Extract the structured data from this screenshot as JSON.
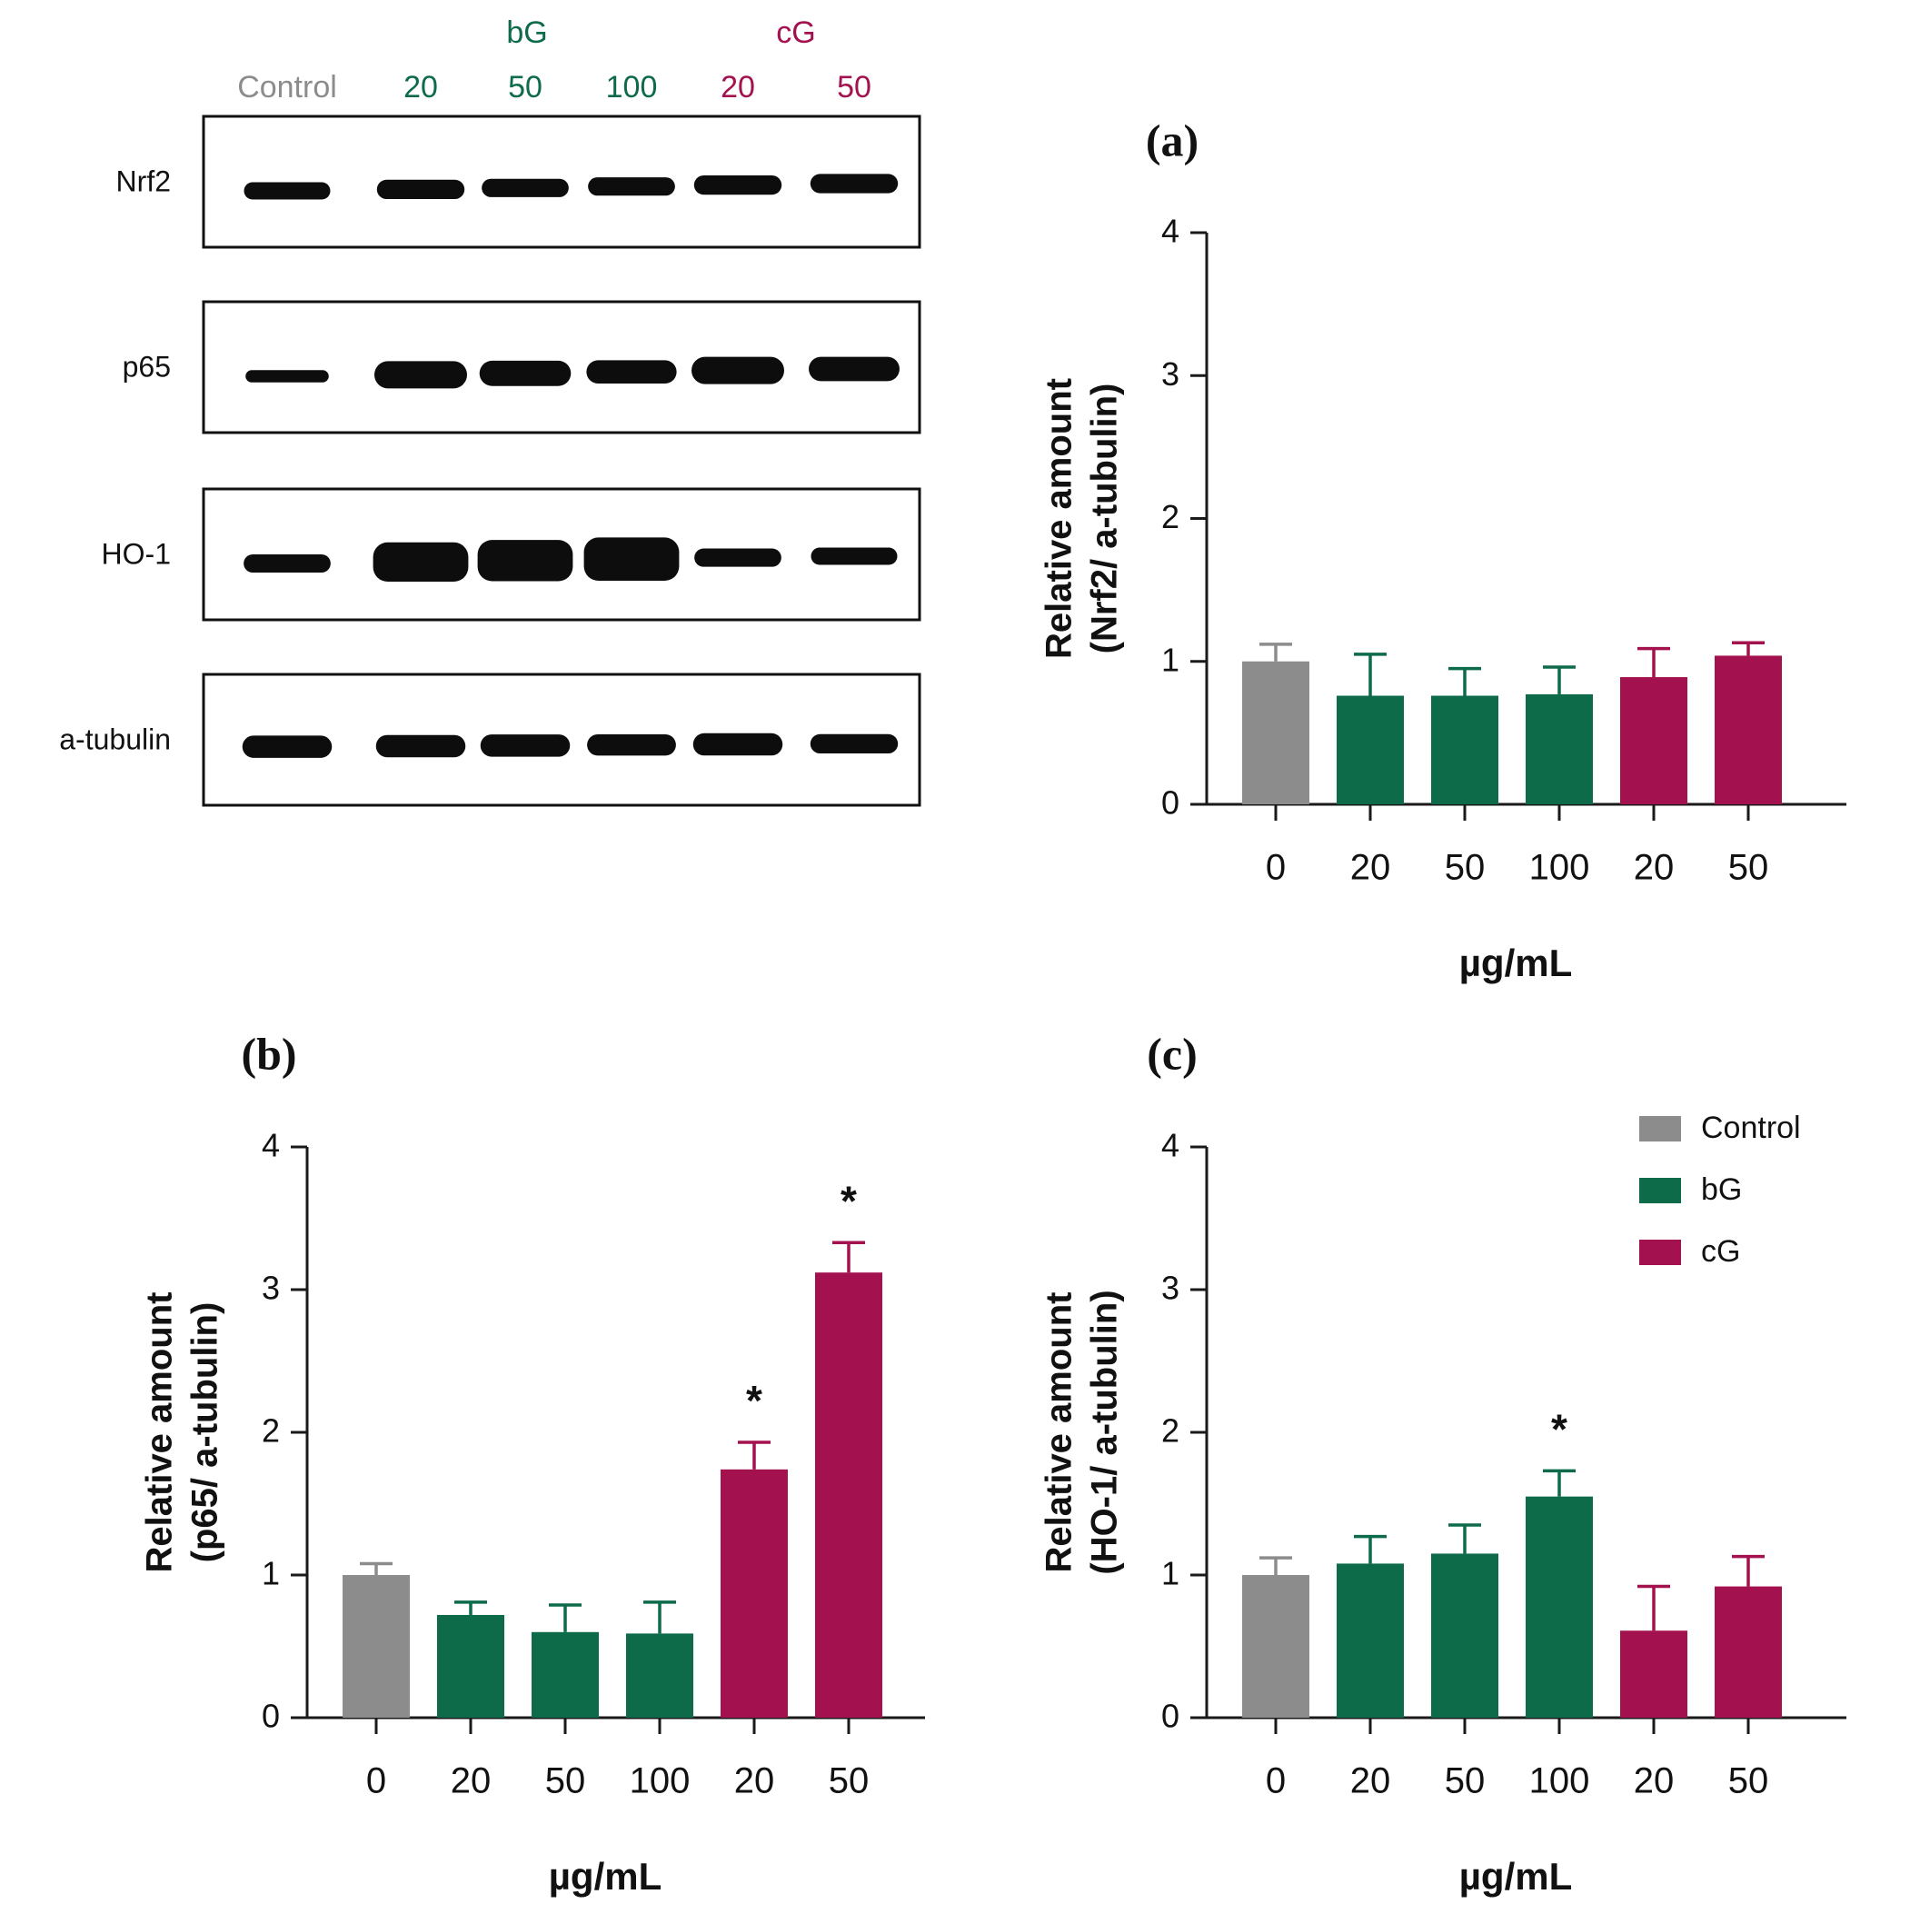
{
  "colors": {
    "control": "#8c8c8c",
    "bG": "#0e6b4a",
    "cG": "#a3124f",
    "axis": "#1a1a1a",
    "band": "#0d0d0d"
  },
  "blot": {
    "group_labels": {
      "bG": "bG",
      "cG": "cG"
    },
    "lane_labels": [
      {
        "text": "Control",
        "group": "control"
      },
      {
        "text": "20",
        "group": "bG"
      },
      {
        "text": "50",
        "group": "bG"
      },
      {
        "text": "100",
        "group": "bG"
      },
      {
        "text": "20",
        "group": "cG"
      },
      {
        "text": "50",
        "group": "cG"
      }
    ],
    "rows": [
      {
        "label": "Nrf2",
        "band_intensity": [
          0.5,
          0.6,
          0.55,
          0.55,
          0.6,
          0.6
        ]
      },
      {
        "label": "p65",
        "band_intensity": [
          0.25,
          1.0,
          0.9,
          0.8,
          1.0,
          0.85
        ]
      },
      {
        "label": "HO-1",
        "band_intensity": [
          0.55,
          1.6,
          1.7,
          1.8,
          0.55,
          0.5
        ]
      },
      {
        "label": "a-tubulin",
        "band_intensity": [
          0.75,
          0.75,
          0.75,
          0.7,
          0.75,
          0.6
        ]
      }
    ]
  },
  "chart_data": [
    {
      "panel": "(a)",
      "type": "bar",
      "title": "(a)",
      "ylabel_line1": "Relative amount",
      "ylabel_line2": "(Nrf2/ a-tubulin)",
      "xlabel": "µg/mL",
      "categories": [
        "0",
        "20",
        "50",
        "100",
        "20",
        "50"
      ],
      "groups": [
        "control",
        "bG",
        "bG",
        "bG",
        "cG",
        "cG"
      ],
      "values": [
        1.0,
        0.76,
        0.76,
        0.77,
        0.89,
        1.04
      ],
      "errors": [
        0.12,
        0.29,
        0.19,
        0.19,
        0.2,
        0.09
      ],
      "significance": [
        "",
        "",
        "",
        "",
        "",
        ""
      ],
      "ylim": [
        0,
        4
      ],
      "yticks": [
        "0",
        "1",
        "2",
        "3",
        "4"
      ]
    },
    {
      "panel": "(b)",
      "type": "bar",
      "title": "(b)",
      "ylabel_line1": "Relative amount",
      "ylabel_line2": "(p65/ a-tubulin)",
      "xlabel": "µg/mL",
      "categories": [
        "0",
        "20",
        "50",
        "100",
        "20",
        "50"
      ],
      "groups": [
        "control",
        "bG",
        "bG",
        "bG",
        "cG",
        "cG"
      ],
      "values": [
        1.0,
        0.72,
        0.6,
        0.59,
        1.74,
        3.12
      ],
      "errors": [
        0.08,
        0.09,
        0.19,
        0.22,
        0.19,
        0.21
      ],
      "significance": [
        "",
        "",
        "",
        "",
        "*",
        "*"
      ],
      "ylim": [
        0,
        4
      ],
      "yticks": [
        "0",
        "1",
        "2",
        "3",
        "4"
      ]
    },
    {
      "panel": "(c)",
      "type": "bar",
      "title": "(c)",
      "ylabel_line1": "Relative amount",
      "ylabel_line2": "(HO-1/ a-tubulin)",
      "xlabel": "µg/mL",
      "categories": [
        "0",
        "20",
        "50",
        "100",
        "20",
        "50"
      ],
      "groups": [
        "control",
        "bG",
        "bG",
        "bG",
        "cG",
        "cG"
      ],
      "values": [
        1.0,
        1.08,
        1.15,
        1.55,
        0.61,
        0.92
      ],
      "errors": [
        0.12,
        0.19,
        0.2,
        0.18,
        0.31,
        0.21
      ],
      "significance": [
        "",
        "",
        "",
        "*",
        "",
        ""
      ],
      "ylim": [
        0,
        4
      ],
      "yticks": [
        "0",
        "1",
        "2",
        "3",
        "4"
      ],
      "legend": [
        {
          "label": "Control",
          "group": "control"
        },
        {
          "label": "bG",
          "group": "bG"
        },
        {
          "label": "cG",
          "group": "cG"
        }
      ],
      "legend_position": "top-right"
    }
  ]
}
